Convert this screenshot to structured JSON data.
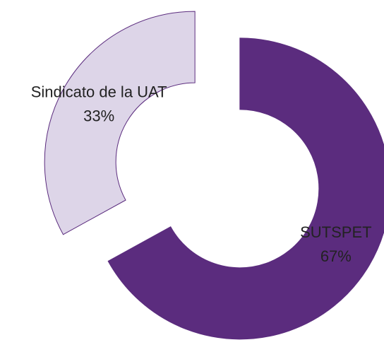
{
  "chart_data": {
    "type": "donut",
    "categories": [
      "SUTSPET",
      "Sindicato de la UAT"
    ],
    "values": [
      67,
      33
    ],
    "value_labels": [
      "67%",
      "33%"
    ],
    "colors": [
      "#5b2c7e",
      "#ddd5e8"
    ],
    "exploded": true
  }
}
